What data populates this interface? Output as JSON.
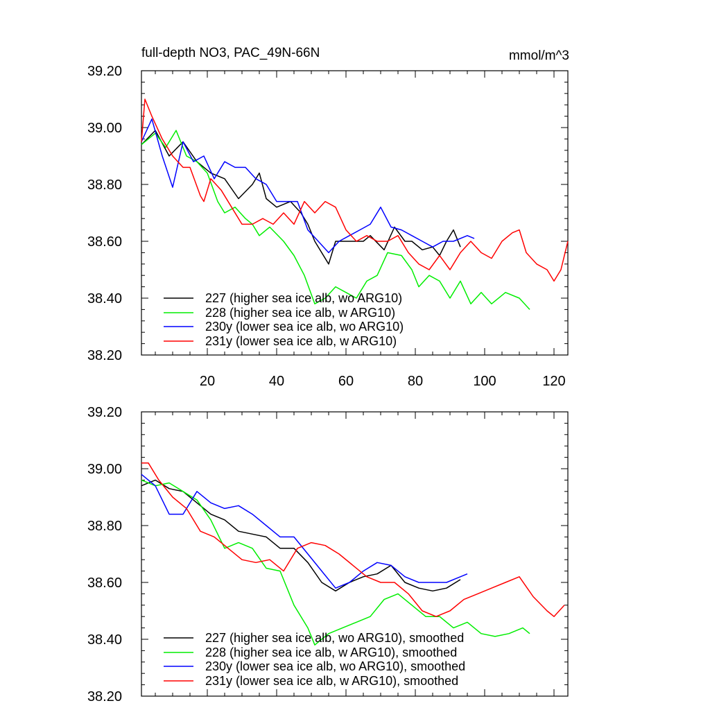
{
  "chart_data": [
    {
      "type": "line",
      "title": "full-depth NO3, PAC_49N-66N",
      "units": "mmol/m^3",
      "xlim": [
        1,
        124
      ],
      "ylim": [
        38.2,
        39.2
      ],
      "xticks": [
        20,
        40,
        60,
        80,
        100,
        120
      ],
      "xtick_labels": [
        "20",
        "40",
        "60",
        "80",
        "100",
        "120"
      ],
      "yticks": [
        38.2,
        38.4,
        38.6,
        38.8,
        39.0,
        39.2
      ],
      "ytick_labels": [
        "38.20",
        "38.40",
        "38.60",
        "38.80",
        "39.00",
        "39.20"
      ],
      "legend_position": "bottom-left",
      "series": [
        {
          "name": "227 (higher sea ice alb, wo ARG10)",
          "color": "#000000",
          "x": [
            1,
            5,
            9,
            13,
            17,
            21,
            25,
            29,
            33,
            35,
            37,
            40,
            44,
            47,
            49,
            51,
            55,
            57,
            61,
            65,
            67,
            71,
            74,
            77,
            79,
            82,
            85,
            87,
            89,
            91,
            93
          ],
          "y": [
            38.94,
            38.99,
            38.9,
            38.95,
            38.88,
            38.84,
            38.82,
            38.75,
            38.8,
            38.84,
            38.75,
            38.72,
            38.74,
            38.7,
            38.66,
            38.6,
            38.52,
            38.6,
            38.6,
            38.6,
            38.62,
            38.57,
            38.65,
            38.6,
            38.6,
            38.57,
            38.58,
            38.55,
            38.6,
            38.64,
            38.58
          ]
        },
        {
          "name": "228 (higher sea ice alb, w ARG10)",
          "color": "#00ee00",
          "x": [
            1,
            5,
            8,
            11,
            14,
            17,
            20,
            23,
            25,
            28,
            31,
            33,
            35,
            38,
            42,
            45,
            48,
            51,
            54,
            57,
            60,
            63,
            66,
            69,
            72,
            76,
            79,
            81,
            84,
            87,
            90,
            93,
            96,
            99,
            102,
            106,
            110,
            113
          ],
          "y": [
            38.94,
            38.98,
            38.93,
            38.99,
            38.9,
            38.88,
            38.84,
            38.74,
            38.7,
            38.72,
            38.68,
            38.66,
            38.62,
            38.65,
            38.6,
            38.55,
            38.48,
            38.38,
            38.4,
            38.44,
            38.42,
            38.4,
            38.46,
            38.48,
            38.56,
            38.55,
            38.5,
            38.44,
            38.48,
            38.46,
            38.4,
            38.46,
            38.38,
            38.42,
            38.38,
            38.42,
            38.4,
            38.36
          ]
        },
        {
          "name": "230y (lower sea ice alb, wo ARG10)",
          "color": "#0000ff",
          "x": [
            1,
            4,
            7,
            10,
            13,
            16,
            19,
            22,
            25,
            28,
            31,
            34,
            37,
            40,
            43,
            46,
            49,
            52,
            55,
            58,
            61,
            64,
            67,
            70,
            73,
            76,
            79,
            82,
            85,
            88,
            91,
            95,
            97
          ],
          "y": [
            38.95,
            39.03,
            38.9,
            38.79,
            38.95,
            38.88,
            38.9,
            38.82,
            38.88,
            38.86,
            38.86,
            38.82,
            38.8,
            38.74,
            38.74,
            38.74,
            38.64,
            38.6,
            38.56,
            38.6,
            38.62,
            38.64,
            38.66,
            38.72,
            38.65,
            38.64,
            38.62,
            38.6,
            38.58,
            38.6,
            38.6,
            38.62,
            38.61
          ]
        },
        {
          "name": "231y (lower sea ice alb, w ARG10)",
          "color": "#ff0000",
          "x": [
            1,
            2,
            4,
            7,
            10,
            13,
            15,
            18,
            19,
            21,
            24,
            27,
            30,
            33,
            36,
            39,
            42,
            45,
            48,
            51,
            54,
            57,
            60,
            63,
            66,
            69,
            72,
            75,
            78,
            81,
            84,
            87,
            90,
            93,
            96,
            99,
            102,
            105,
            108,
            110,
            112,
            115,
            118,
            120,
            122,
            124
          ],
          "y": [
            38.95,
            39.1,
            39.04,
            38.96,
            38.9,
            38.86,
            38.86,
            38.76,
            38.74,
            38.82,
            38.78,
            38.72,
            38.66,
            38.66,
            38.68,
            38.66,
            38.7,
            38.66,
            38.74,
            38.7,
            38.74,
            38.72,
            38.64,
            38.6,
            38.62,
            38.6,
            38.6,
            38.62,
            38.56,
            38.52,
            38.5,
            38.55,
            38.5,
            38.56,
            38.6,
            38.56,
            38.54,
            38.6,
            38.63,
            38.64,
            38.56,
            38.52,
            38.5,
            38.46,
            38.5,
            38.6
          ]
        }
      ]
    },
    {
      "type": "line",
      "xlim": [
        1,
        124
      ],
      "ylim": [
        38.2,
        39.2
      ],
      "xticks": [
        20,
        40,
        60,
        80,
        100,
        120
      ],
      "yticks": [
        38.2,
        38.4,
        38.6,
        38.8,
        39.0,
        39.2
      ],
      "ytick_labels": [
        "38.20",
        "38.40",
        "38.60",
        "38.80",
        "39.00",
        "39.20"
      ],
      "legend_position": "bottom-left",
      "series": [
        {
          "name": "227 (higher sea ice alb, wo ARG10), smoothed",
          "color": "#000000",
          "x": [
            1,
            5,
            9,
            13,
            17,
            21,
            25,
            29,
            33,
            37,
            41,
            45,
            49,
            53,
            57,
            61,
            65,
            69,
            73,
            77,
            81,
            85,
            89,
            93
          ],
          "y": [
            38.94,
            38.96,
            38.93,
            38.92,
            38.88,
            38.84,
            38.82,
            38.78,
            38.77,
            38.76,
            38.72,
            38.72,
            38.67,
            38.6,
            38.57,
            38.6,
            38.62,
            38.63,
            38.66,
            38.6,
            38.58,
            38.57,
            38.58,
            38.61
          ]
        },
        {
          "name": "228 (higher sea ice alb, w ARG10), smoothed",
          "color": "#00ee00",
          "x": [
            1,
            5,
            9,
            13,
            17,
            21,
            25,
            29,
            33,
            37,
            41,
            45,
            49,
            51,
            55,
            59,
            63,
            67,
            71,
            75,
            79,
            83,
            87,
            91,
            95,
            99,
            103,
            107,
            111,
            113
          ],
          "y": [
            38.96,
            38.94,
            38.95,
            38.92,
            38.89,
            38.82,
            38.72,
            38.74,
            38.72,
            38.65,
            38.64,
            38.52,
            38.44,
            38.38,
            38.42,
            38.44,
            38.46,
            38.48,
            38.54,
            38.56,
            38.52,
            38.48,
            38.48,
            38.44,
            38.46,
            38.42,
            38.41,
            38.42,
            38.44,
            38.42
          ]
        },
        {
          "name": "230y (lower sea ice alb, wo ARG10), smoothed",
          "color": "#0000ff",
          "x": [
            1,
            5,
            9,
            13,
            17,
            21,
            25,
            29,
            33,
            37,
            41,
            45,
            49,
            53,
            57,
            61,
            65,
            69,
            73,
            77,
            81,
            85,
            89,
            93,
            95
          ],
          "y": [
            38.98,
            38.94,
            38.84,
            38.84,
            38.92,
            38.88,
            38.86,
            38.87,
            38.84,
            38.8,
            38.76,
            38.76,
            38.7,
            38.64,
            38.58,
            38.6,
            38.64,
            38.67,
            38.66,
            38.62,
            38.6,
            38.6,
            38.6,
            38.62,
            38.63
          ]
        },
        {
          "name": "231y (lower sea ice alb, w ARG10), smoothed",
          "color": "#ff0000",
          "x": [
            1,
            3,
            6,
            10,
            14,
            18,
            22,
            26,
            30,
            34,
            38,
            42,
            46,
            50,
            54,
            58,
            62,
            66,
            70,
            74,
            78,
            82,
            86,
            90,
            94,
            98,
            102,
            106,
            110,
            114,
            118,
            120,
            123
          ],
          "y": [
            39.02,
            39.02,
            38.96,
            38.9,
            38.86,
            38.78,
            38.76,
            38.72,
            38.68,
            38.67,
            38.68,
            38.64,
            38.72,
            38.74,
            38.73,
            38.7,
            38.66,
            38.62,
            38.6,
            38.6,
            38.56,
            38.5,
            38.48,
            38.5,
            38.54,
            38.56,
            38.58,
            38.6,
            38.62,
            38.55,
            38.5,
            38.48,
            38.52
          ]
        }
      ]
    }
  ]
}
